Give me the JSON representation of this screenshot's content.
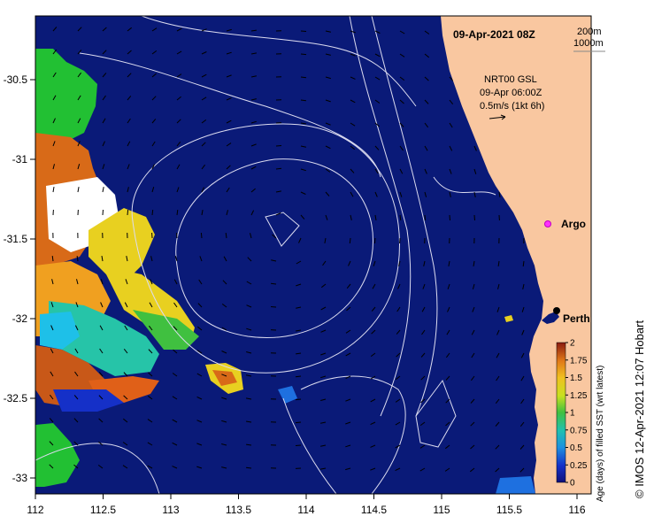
{
  "map": {
    "date_stamp": "09-Apr-2021 08Z",
    "bathy_legend": [
      "200m",
      "1000m"
    ],
    "current_info": [
      "NRT00 GSL",
      "09-Apr 06:00Z",
      "0.5m/s (1kt 6h)"
    ],
    "argo_label": "Argo",
    "city_label": "Perth",
    "credit": "© IMOS 12-Apr-2021 12:07 Hobart",
    "x_ticks": [
      "112",
      "112.5",
      "113",
      "113.5",
      "114",
      "114.5",
      "115",
      "115.5",
      "116"
    ],
    "y_ticks": [
      "-30.5",
      "-31",
      "-31.5",
      "-32",
      "-32.5",
      "-33"
    ]
  },
  "colorbar": {
    "title": "Age (days) of filled SST (wrt latest)",
    "ticks": [
      "2",
      "1.75",
      "1.5",
      "1.25",
      "1",
      "0.75",
      "0.5",
      "0.25",
      "0"
    ]
  },
  "colors": {
    "ocean": "#0a1a78",
    "land": "#f9c7a0",
    "contour": "#dcdcf0"
  }
}
